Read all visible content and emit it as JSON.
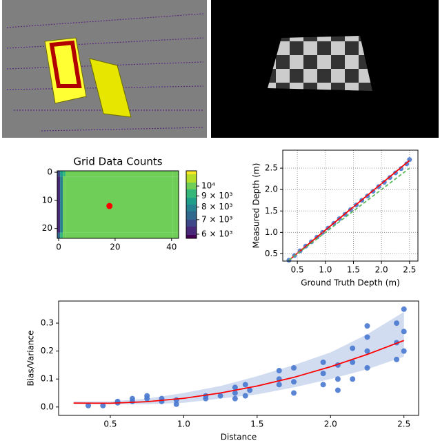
{
  "chart_data": [
    {
      "type": "heatmap",
      "title": "Grid Data Counts",
      "colormap": "viridis",
      "x_edges": [
        -0.5,
        0.5,
        1.5,
        2.5,
        40.5,
        42.5
      ],
      "y_edges": [
        -0.5,
        1.5,
        21.5,
        23.5
      ],
      "values": [
        [
          7000,
          8600,
          9500,
          10300,
          10000
        ],
        [
          6200,
          8200,
          9800,
          10400,
          10200
        ],
        [
          7500,
          9000,
          9800,
          10300,
          9900
        ]
      ],
      "xlim": [
        -0.5,
        42.5
      ],
      "ylim": [
        23.5,
        -0.5
      ],
      "xticks": [
        0,
        20,
        40
      ],
      "yticks": [
        0,
        10,
        20
      ],
      "marker": {
        "x": 18,
        "y": 12,
        "color": "#ff0000"
      },
      "colorbar": {
        "log": true,
        "lim": [
          5740,
          11750
        ],
        "ticks": [
          {
            "value": 10000,
            "label": "10⁴"
          },
          {
            "value": 9000,
            "label": "9 × 10³"
          },
          {
            "value": 8000,
            "label": "8 × 10³"
          },
          {
            "value": 7000,
            "label": "7 × 10³"
          },
          {
            "value": 6000,
            "label": "6 × 10³"
          }
        ]
      }
    },
    {
      "type": "scatter",
      "x_label": "Ground Truth Depth (m)",
      "y_label": "Measured Depth (m)",
      "xlim": [
        0.24,
        2.65
      ],
      "ylim": [
        0.33,
        2.92
      ],
      "grid": true,
      "xticks": [
        0.5,
        {
          "value": 1.0,
          "label": "1.0"
        },
        1.5,
        {
          "value": 2.0,
          "label": "2.0"
        },
        2.5
      ],
      "yticks": [
        0.5,
        {
          "value": 1.0,
          "label": "1.0"
        },
        1.5,
        {
          "value": 2.0,
          "label": "2.0"
        },
        2.5
      ],
      "points": {
        "color": "#4878cf",
        "x": [
          0.35,
          0.45,
          0.55,
          0.65,
          0.75,
          0.85,
          0.95,
          1.05,
          1.15,
          1.25,
          1.35,
          1.45,
          1.55,
          1.65,
          1.75,
          1.85,
          1.95,
          2.05,
          2.15,
          2.25,
          2.35,
          2.45,
          2.5
        ],
        "y": [
          0.35,
          0.46,
          0.57,
          0.68,
          0.78,
          0.89,
          1.0,
          1.1,
          1.21,
          1.32,
          1.42,
          1.53,
          1.64,
          1.75,
          1.85,
          1.96,
          2.07,
          2.17,
          2.28,
          2.39,
          2.49,
          2.6,
          2.7
        ]
      },
      "lines": [
        {
          "color": "#ff0000",
          "dash": false,
          "x": [
            0.35,
            2.5
          ],
          "y": [
            0.35,
            2.68
          ]
        },
        {
          "color": "#5cb85c",
          "dash": true,
          "x": [
            0.35,
            2.5
          ],
          "y": [
            0.35,
            2.5
          ]
        }
      ]
    },
    {
      "type": "scatter",
      "x_label": "Distance",
      "y_label": "Bias/Variance",
      "xlim": [
        0.148,
        2.6
      ],
      "ylim": [
        -0.03,
        0.379
      ],
      "grid": false,
      "xticks": [
        0.5,
        {
          "value": 1.0,
          "label": "1.0"
        },
        1.5,
        {
          "value": 2.0,
          "label": "2.0"
        },
        2.5
      ],
      "yticks": [
        {
          "value": 0.0,
          "label": "0.0"
        },
        0.1,
        0.2,
        0.3
      ],
      "band": {
        "color": "#c6d3ee",
        "x": [
          0.25,
          0.5,
          0.75,
          1.0,
          1.25,
          1.5,
          1.75,
          2.0,
          2.25,
          2.5
        ],
        "lower": [
          0.01,
          0.01,
          0.01,
          0.015,
          0.03,
          0.045,
          0.07,
          0.1,
          0.135,
          0.18
        ],
        "upper": [
          0.02,
          0.02,
          0.03,
          0.05,
          0.075,
          0.11,
          0.15,
          0.195,
          0.26,
          0.34
        ]
      },
      "points": {
        "color": "#4878cf",
        "x": [
          0.35,
          0.45,
          0.55,
          0.55,
          0.65,
          0.65,
          0.75,
          0.75,
          0.85,
          0.85,
          0.95,
          0.95,
          1.15,
          1.15,
          1.25,
          1.35,
          1.35,
          1.35,
          1.42,
          1.42,
          1.45,
          1.65,
          1.65,
          1.65,
          1.75,
          1.75,
          1.75,
          1.95,
          1.95,
          1.95,
          2.05,
          2.05,
          2.05,
          2.15,
          2.15,
          2.15,
          2.25,
          2.25,
          2.25,
          2.45,
          2.45,
          2.45,
          2.5,
          2.5,
          2.5,
          2.25
        ],
        "y": [
          0.005,
          0.005,
          0.015,
          0.02,
          0.02,
          0.03,
          0.04,
          0.03,
          0.03,
          0.02,
          0.025,
          0.01,
          0.03,
          0.04,
          0.04,
          0.03,
          0.07,
          0.05,
          0.04,
          0.08,
          0.06,
          0.08,
          0.13,
          0.1,
          0.05,
          0.09,
          0.14,
          0.08,
          0.12,
          0.16,
          0.06,
          0.1,
          0.15,
          0.1,
          0.16,
          0.21,
          0.14,
          0.2,
          0.25,
          0.17,
          0.23,
          0.3,
          0.2,
          0.27,
          0.35,
          0.29
        ]
      },
      "lines": [
        {
          "color": "#ff0000",
          "dash": false,
          "x": [
            0.25,
            0.5,
            0.75,
            1.0,
            1.25,
            1.5,
            1.75,
            2.0,
            2.25,
            2.5
          ],
          "y": [
            0.014,
            0.0135,
            0.019,
            0.031,
            0.05,
            0.075,
            0.106,
            0.144,
            0.188,
            0.238
          ]
        }
      ]
    }
  ]
}
